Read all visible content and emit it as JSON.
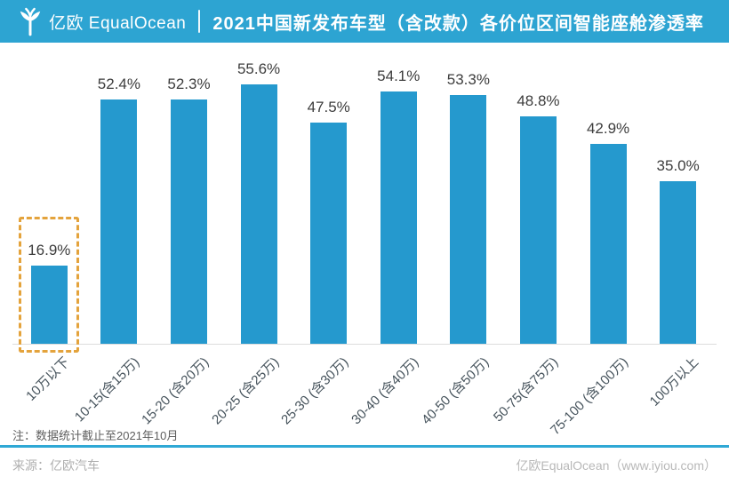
{
  "header": {
    "logo_text": "亿欧 EqualOcean",
    "title": "2021中国新发布车型（含改款）各价位区间智能座舱渗透率"
  },
  "chart_data": {
    "type": "bar",
    "title": "2021中国新发布车型（含改款）各价位区间智能座舱渗透率",
    "categories": [
      "10万以下",
      "10-15(含15万)",
      "15-20 (含20万)",
      "20-25 (含25万)",
      "25-30 (含30万)",
      "30-40 (含40万)",
      "40-50 (含50万)",
      "50-75(含75万)",
      "75-100 (含100万)",
      "100万以上"
    ],
    "values": [
      16.9,
      52.4,
      52.3,
      55.6,
      47.5,
      54.1,
      53.3,
      48.8,
      42.9,
      35.0
    ],
    "value_labels": [
      "16.9%",
      "52.4%",
      "52.3%",
      "55.6%",
      "47.5%",
      "54.1%",
      "53.3%",
      "48.8%",
      "42.9%",
      "35.0%"
    ],
    "unit": "%",
    "xlabel": "",
    "ylabel": "",
    "ylim": [
      0,
      60
    ],
    "grid": false,
    "legend": "none",
    "highlight_index": 0
  },
  "colors": {
    "header_bg": "#2DA4D2",
    "bar": "#2599CE",
    "highlight_border": "#E4A33C",
    "value_label": "#3D3D3D",
    "axis_label": "#46535C",
    "baseline": "#DCDCDC",
    "divider": "#2FA8D5",
    "note_text": "#5E5E5E",
    "footer_text": "#B8B8B8"
  },
  "note": "注：数据统计截止至2021年10月",
  "footer": {
    "source": "来源：亿欧汽车",
    "credit": "亿欧EqualOcean（www.iyiou.com）"
  }
}
